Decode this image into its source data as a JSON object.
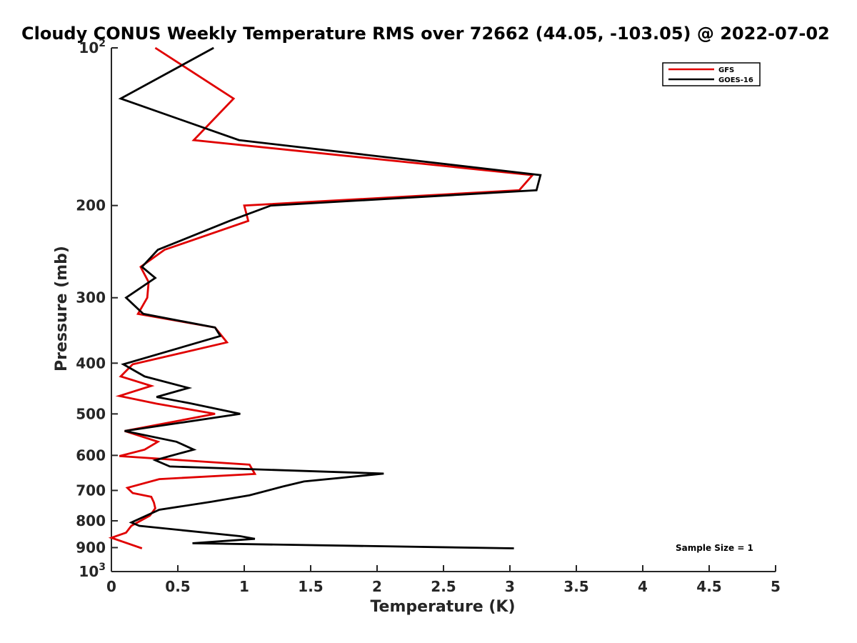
{
  "chart_data": {
    "type": "line",
    "title": "Cloudy CONUS Weekly Temperature RMS over 72662 (44.05, -103.05) @ 2022-07-02",
    "xlabel": "Temperature (K)",
    "ylabel": "Pressure (mb)",
    "xlim": [
      0,
      5
    ],
    "ylim": [
      100,
      1000
    ],
    "y_scale": "log",
    "y_reversed": true,
    "x_ticks": [
      "0",
      "0.5",
      "1",
      "1.5",
      "2",
      "2.5",
      "3",
      "3.5",
      "4",
      "4.5",
      "5"
    ],
    "x_tick_values": [
      0,
      0.5,
      1,
      1.5,
      2,
      2.5,
      3,
      3.5,
      4,
      4.5,
      5
    ],
    "y_ticks": [
      {
        "value": 100,
        "base": "10",
        "exp": "2"
      },
      {
        "value": 200,
        "label": "200"
      },
      {
        "value": 300,
        "label": "300"
      },
      {
        "value": 400,
        "label": "400"
      },
      {
        "value": 500,
        "label": "500"
      },
      {
        "value": 600,
        "label": "600"
      },
      {
        "value": 700,
        "label": "700"
      },
      {
        "value": 800,
        "label": "800"
      },
      {
        "value": 900,
        "label": "900"
      },
      {
        "value": 1000,
        "base": "10",
        "exp": "3"
      }
    ],
    "legend": {
      "placement": "top-right"
    },
    "annotation": "Sample Size = 1",
    "grid": false,
    "series": [
      {
        "name": "GFS",
        "color": "#e00000",
        "points": [
          [
            0.33,
            100
          ],
          [
            0.92,
            125
          ],
          [
            0.62,
            150
          ],
          [
            3.17,
            175
          ],
          [
            3.07,
            187
          ],
          [
            1.0,
            200
          ],
          [
            1.03,
            214
          ],
          [
            0.4,
            243
          ],
          [
            0.22,
            262
          ],
          [
            0.28,
            280
          ],
          [
            0.27,
            300
          ],
          [
            0.2,
            322
          ],
          [
            0.78,
            342
          ],
          [
            0.87,
            365
          ],
          [
            0.16,
            402
          ],
          [
            0.07,
            424
          ],
          [
            0.3,
            442
          ],
          [
            0.06,
            462
          ],
          [
            0.34,
            478
          ],
          [
            0.78,
            500
          ],
          [
            0.1,
            539
          ],
          [
            0.35,
            565
          ],
          [
            0.25,
            585
          ],
          [
            0.06,
            602
          ],
          [
            1.04,
            625
          ],
          [
            1.08,
            651
          ],
          [
            0.36,
            666
          ],
          [
            0.12,
            692
          ],
          [
            0.16,
            708
          ],
          [
            0.3,
            720
          ],
          [
            0.32,
            738
          ],
          [
            0.33,
            757
          ],
          [
            0.29,
            782
          ],
          [
            0.15,
            818
          ],
          [
            0.11,
            843
          ],
          [
            0.0,
            862
          ],
          [
            0.23,
            903
          ]
        ]
      },
      {
        "name": "GOES-16",
        "color": "#000000",
        "points": [
          [
            0.77,
            100
          ],
          [
            0.07,
            125
          ],
          [
            0.96,
            150
          ],
          [
            3.23,
            175
          ],
          [
            3.2,
            187
          ],
          [
            1.2,
            200
          ],
          [
            0.89,
            214
          ],
          [
            0.35,
            243
          ],
          [
            0.23,
            262
          ],
          [
            0.33,
            275
          ],
          [
            0.11,
            300
          ],
          [
            0.24,
            322
          ],
          [
            0.78,
            342
          ],
          [
            0.82,
            355
          ],
          [
            0.09,
            402
          ],
          [
            0.25,
            424
          ],
          [
            0.58,
            446
          ],
          [
            0.34,
            464
          ],
          [
            0.59,
            477
          ],
          [
            0.97,
            500
          ],
          [
            0.1,
            539
          ],
          [
            0.49,
            565
          ],
          [
            0.62,
            585
          ],
          [
            0.44,
            602
          ],
          [
            0.33,
            613
          ],
          [
            0.44,
            630
          ],
          [
            2.05,
            650
          ],
          [
            1.45,
            673
          ],
          [
            1.29,
            688
          ],
          [
            1.04,
            715
          ],
          [
            0.75,
            736
          ],
          [
            0.36,
            762
          ],
          [
            0.15,
            806
          ],
          [
            0.21,
            818
          ],
          [
            0.97,
            856
          ],
          [
            1.08,
            866
          ],
          [
            0.61,
            883
          ],
          [
            3.03,
            903
          ]
        ]
      }
    ]
  }
}
